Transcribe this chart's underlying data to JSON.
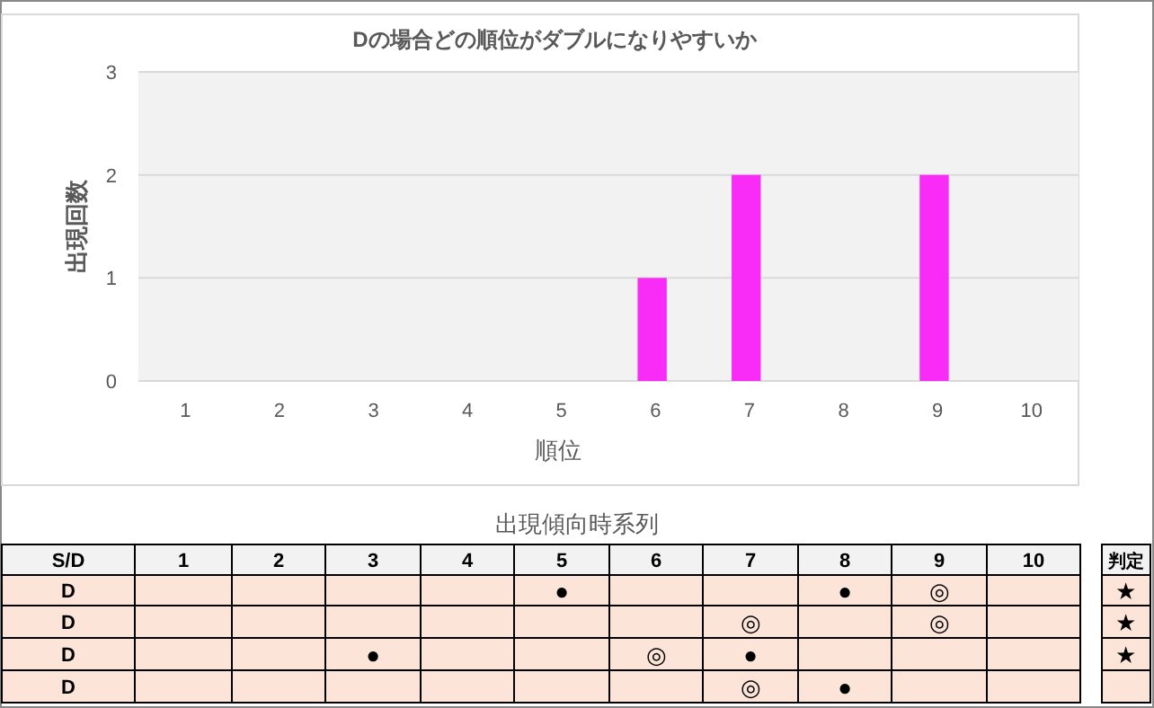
{
  "chart_data": [
    {
      "type": "bar",
      "title": "Dの場合どの順位がダブルになりやすいか",
      "xlabel": "順位",
      "ylabel": "出現回数",
      "categories": [
        "1",
        "2",
        "3",
        "4",
        "5",
        "6",
        "7",
        "8",
        "9",
        "10"
      ],
      "values": [
        0,
        0,
        0,
        0,
        0,
        1,
        2,
        0,
        2,
        0
      ],
      "color": "#f92cf7",
      "ylim": [
        0,
        3
      ],
      "yticks": [
        0,
        1,
        2,
        3
      ],
      "grid": "y"
    },
    {
      "type": "heatmap",
      "title": "出現傾向時系列",
      "ylabel": "S/D",
      "y2label": "判定",
      "cells": [
        [
          null,
          null,
          null,
          null,
          null,
          null,
          null,
          null,
          null,
          null
        ],
        [
          null,
          null,
          null,
          null,
          null,
          null,
          null,
          null,
          null,
          null
        ],
        [
          null,
          null,
          null,
          null,
          null,
          null,
          null,
          null,
          null,
          null
        ],
        [
          null,
          null,
          null,
          null,
          null,
          null,
          null,
          null,
          null,
          null
        ]
      ],
      "categories": [
        "1",
        "2",
        "3",
        "4",
        "5",
        "6",
        "7",
        "8",
        "9",
        "10"
      ],
      "y_categories": [
        "D",
        "D",
        "D",
        "D"
      ],
      "y2_categories": [
        "★",
        "★",
        "★",
        null
      ],
      "cell_labels": [
        [
          null,
          null,
          null,
          null,
          "●",
          null,
          null,
          "●",
          "◎",
          null
        ],
        [
          null,
          null,
          null,
          null,
          null,
          null,
          "◎",
          null,
          "◎",
          null
        ],
        [
          null,
          null,
          "●",
          null,
          null,
          "◎",
          "●",
          null,
          null,
          null
        ],
        [
          null,
          null,
          null,
          null,
          null,
          null,
          "◎",
          "●",
          null,
          null
        ]
      ]
    }
  ]
}
